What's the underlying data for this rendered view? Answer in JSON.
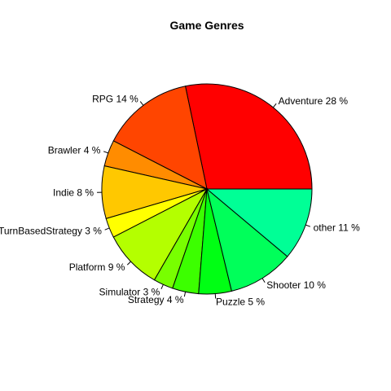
{
  "chart_data": {
    "type": "pie",
    "title": "Game Genres",
    "start_angle_deg": 0,
    "direction": "counterclockwise",
    "slices": [
      {
        "label": "Adventure 28 %",
        "value": 28,
        "color": "#FF0000"
      },
      {
        "label": "RPG 14 %",
        "value": 14,
        "color": "#FF4500"
      },
      {
        "label": "Brawler 4 %",
        "value": 4,
        "color": "#FF8C00"
      },
      {
        "label": "Indie 8 %",
        "value": 8,
        "color": "#FFC800"
      },
      {
        "label": "TurnBasedStrategy 3 %",
        "value": 3,
        "color": "#FFFF00"
      },
      {
        "label": "Platform 9 %",
        "value": 9,
        "color": "#B4FF00"
      },
      {
        "label": "Simulator 3 %",
        "value": 3,
        "color": "#78FF00"
      },
      {
        "label": "Strategy 4 %",
        "value": 4,
        "color": "#3CFF00"
      },
      {
        "label": "Puzzle 5 %",
        "value": 5,
        "color": "#00FF14"
      },
      {
        "label": "Shooter 10 %",
        "value": 10,
        "color": "#00FF5A"
      },
      {
        "label": "other 11 %",
        "value": 11,
        "color": "#00FF96"
      }
    ]
  }
}
